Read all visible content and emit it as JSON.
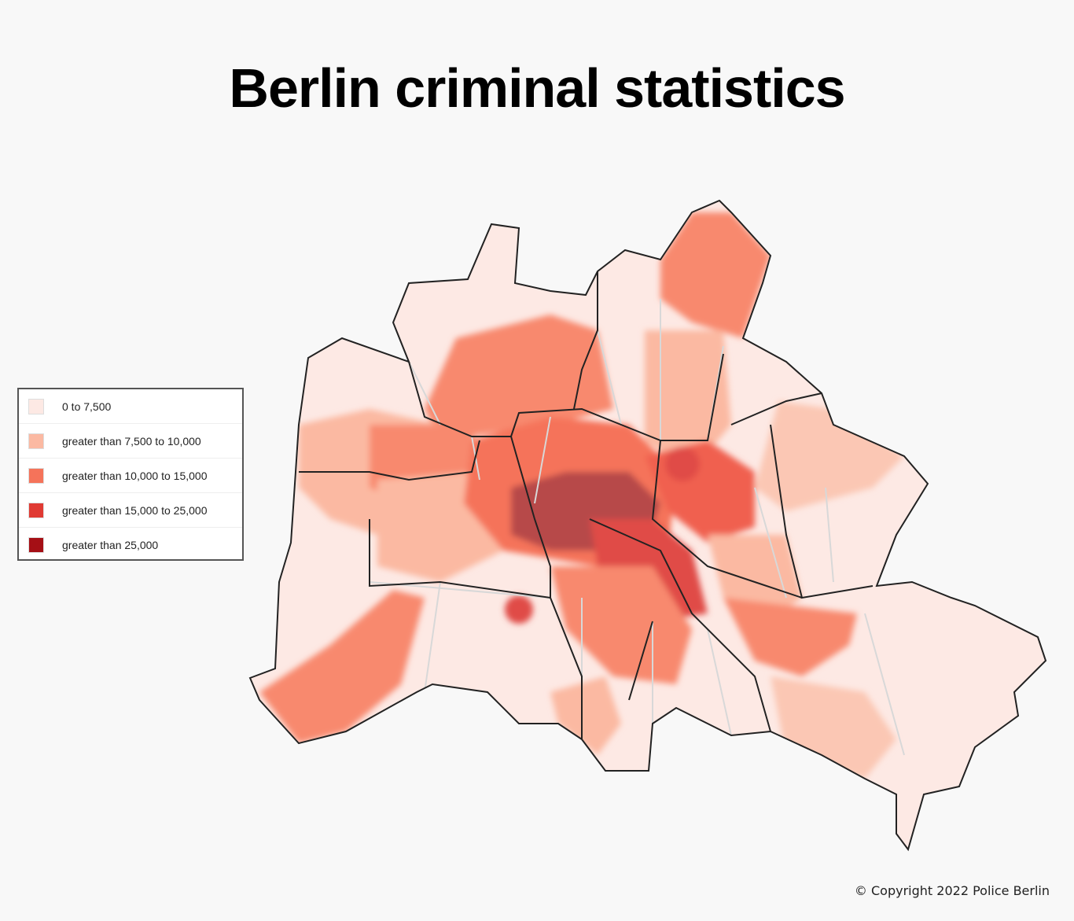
{
  "title": "Berlin criminal statistics",
  "legend": {
    "items": [
      {
        "label": "0 to 7,500",
        "color": "#fde9e4"
      },
      {
        "label": "greater than 7,500 to 10,000",
        "color": "#fbb9a2"
      },
      {
        "label": "greater than 10,000 to 15,000",
        "color": "#f5735a"
      },
      {
        "label": "greater than 15,000 to 25,000",
        "color": "#e03a33"
      },
      {
        "label": "greater than 25,000",
        "color": "#a50f15"
      }
    ]
  },
  "copyright": "© Copyright 2022 Police Berlin"
}
